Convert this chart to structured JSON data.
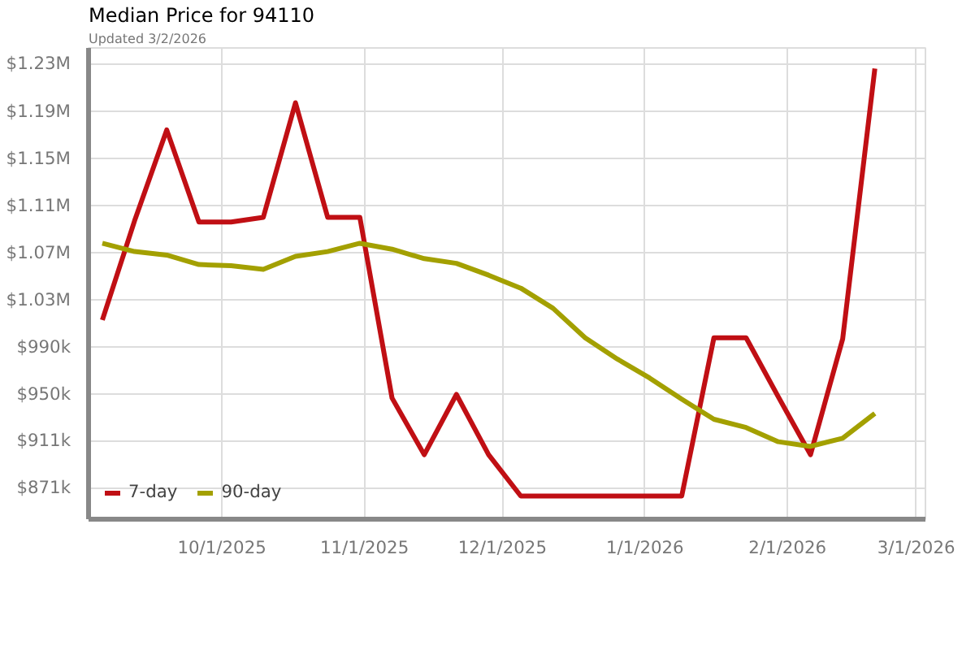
{
  "chart_data": {
    "type": "line",
    "title": "Median Price for 94110",
    "subtitle": "Updated 3/2/2026",
    "x": [
      "2025-09-05",
      "2025-09-12",
      "2025-09-19",
      "2025-09-26",
      "2025-10-03",
      "2025-10-10",
      "2025-10-17",
      "2025-10-24",
      "2025-10-31",
      "2025-11-07",
      "2025-11-14",
      "2025-11-21",
      "2025-11-28",
      "2025-12-05",
      "2025-12-12",
      "2025-12-19",
      "2025-12-26",
      "2026-01-02",
      "2026-01-09",
      "2026-01-16",
      "2026-01-23",
      "2026-01-30",
      "2026-02-06",
      "2026-02-13",
      "2026-02-20"
    ],
    "series": [
      {
        "name": "7-day",
        "color": "#c00f14",
        "values": [
          1013000,
          1097000,
          1174000,
          1096000,
          1096000,
          1100000,
          1197000,
          1100000,
          1100000,
          947000,
          899000,
          950000,
          899000,
          864000,
          864000,
          864000,
          864000,
          864000,
          864000,
          998000,
          998000,
          948000,
          899000,
          997000,
          1226000
        ]
      },
      {
        "name": "90-day",
        "color": "#a3a000",
        "values": [
          1078000,
          1071000,
          1068000,
          1060000,
          1059000,
          1056000,
          1067000,
          1071000,
          1078000,
          1073000,
          1065000,
          1061000,
          1051000,
          1040000,
          1023000,
          998000,
          980000,
          964000,
          946000,
          929000,
          922000,
          910000,
          906000,
          913000,
          934000
        ]
      }
    ],
    "xlim": [
      "2025-09-02",
      "2026-03-03"
    ],
    "xticks": [
      {
        "value": "2025-10-01",
        "label": "10/1/2025"
      },
      {
        "value": "2025-11-01",
        "label": "11/1/2025"
      },
      {
        "value": "2025-12-01",
        "label": "12/1/2025"
      },
      {
        "value": "2026-01-01",
        "label": "1/1/2026"
      },
      {
        "value": "2026-02-01",
        "label": "2/1/2026"
      },
      {
        "value": "2026-03-01",
        "label": "3/1/2026"
      }
    ],
    "ylim": [
      844400,
      1243400
    ],
    "yticks": [
      {
        "value": 871000,
        "label": "$871k"
      },
      {
        "value": 911000,
        "label": "$911k"
      },
      {
        "value": 950000,
        "label": "$950k"
      },
      {
        "value": 990000,
        "label": "$990k"
      },
      {
        "value": 1030000,
        "label": "$1.03M"
      },
      {
        "value": 1070000,
        "label": "$1.07M"
      },
      {
        "value": 1110000,
        "label": "$1.11M"
      },
      {
        "value": 1150000,
        "label": "$1.15M"
      },
      {
        "value": 1190000,
        "label": "$1.19M"
      },
      {
        "value": 1230000,
        "label": "$1.23M"
      }
    ],
    "grid": true,
    "legend": "bottom left",
    "marker": "none",
    "line_style": "solid"
  }
}
